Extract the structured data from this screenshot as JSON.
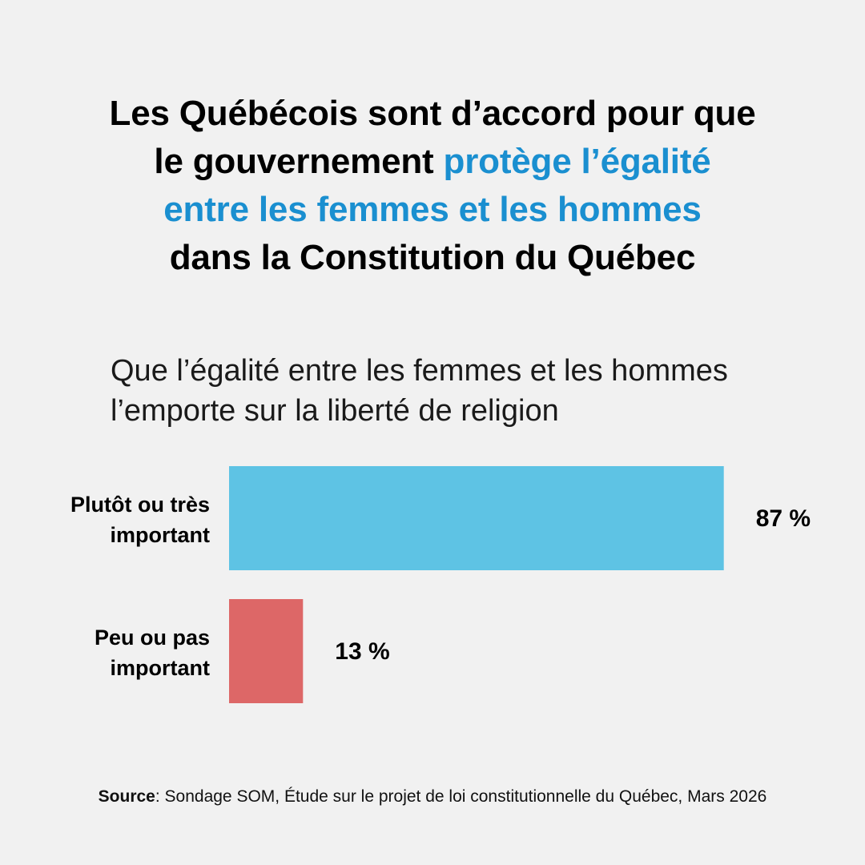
{
  "headline": {
    "line1": "Les Québécois sont d’accord pour que",
    "line2_prefix": "le gouvernement ",
    "line2_accent": "protège l’égalité",
    "line3_accent": "entre les femmes et les hommes",
    "line4": "dans la Constitution du Québec"
  },
  "subtitle": {
    "line1": "Que l’égalité entre les femmes et les hommes",
    "line2": "l’emporte sur la liberté de religion"
  },
  "source": {
    "label": "Source",
    "text": ": Sondage SOM, Étude sur le projet de loi constitutionnelle du Québec, Mars 2026"
  },
  "colors": {
    "accent": "#1a8fd0",
    "background": "#f1f1f1"
  },
  "chart_data": {
    "type": "bar",
    "orientation": "horizontal",
    "title": "Que l’égalité entre les femmes et les hommes l’emporte sur la liberté de religion",
    "categories": [
      [
        "Plutôt ou très",
        "important"
      ],
      [
        "Peu ou pas",
        "important"
      ]
    ],
    "values": [
      87,
      13
    ],
    "value_labels": [
      "87 %",
      "13 %"
    ],
    "colors": [
      "#5ec3e4",
      "#dd6767"
    ],
    "xlim": [
      0,
      100
    ],
    "grid": false,
    "legend": "none"
  }
}
